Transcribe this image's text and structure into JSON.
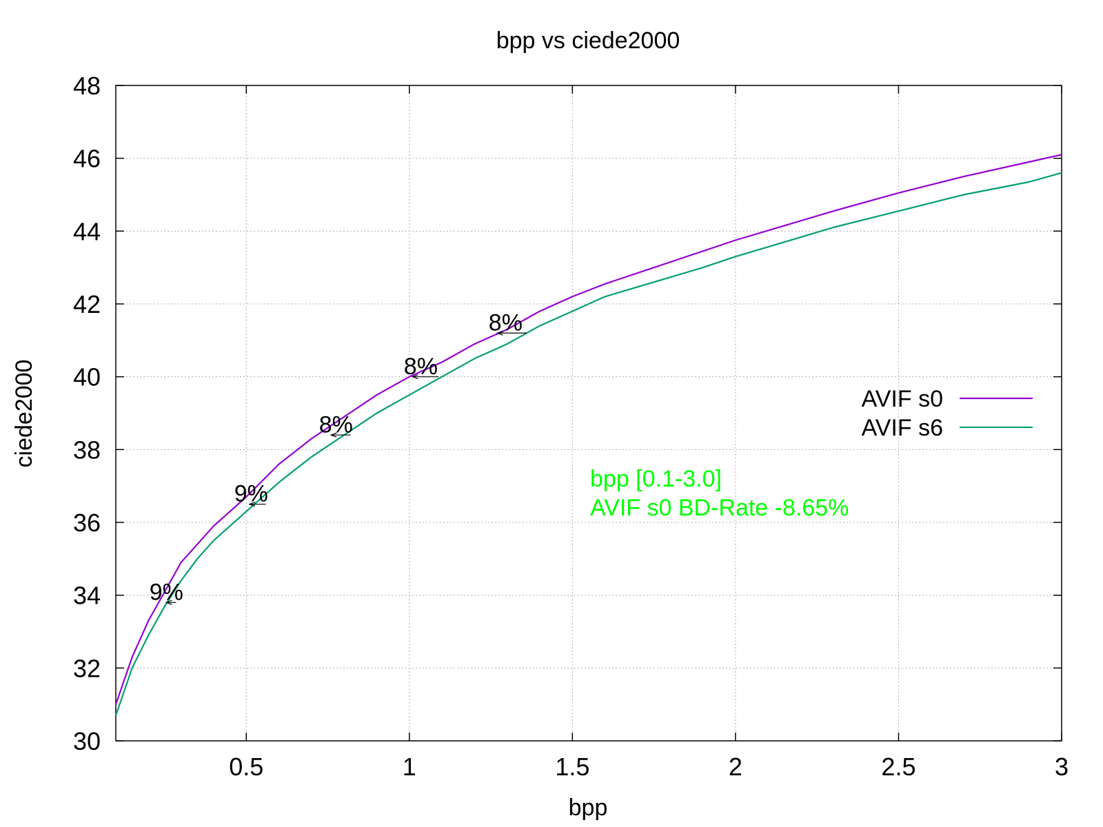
{
  "chart_data": {
    "type": "line",
    "title": "bpp vs ciede2000",
    "xlabel": "bpp",
    "ylabel": "ciede2000",
    "xlim": [
      0.1,
      3.0
    ],
    "ylim": [
      30,
      48
    ],
    "xticks": [
      0.5,
      1,
      1.5,
      2,
      2.5,
      3
    ],
    "xtick_labels": [
      "0.5",
      "1",
      "1.5",
      "2",
      "2.5",
      "3"
    ],
    "yticks": [
      30,
      32,
      34,
      36,
      38,
      40,
      42,
      44,
      46,
      48
    ],
    "ytick_labels": [
      "30",
      "32",
      "34",
      "36",
      "38",
      "40",
      "42",
      "44",
      "46",
      "48"
    ],
    "grid": true,
    "legend_position": "right",
    "series": [
      {
        "name": "AVIF s0",
        "color": "#9400d3",
        "x": [
          0.1,
          0.15,
          0.2,
          0.25,
          0.3,
          0.35,
          0.4,
          0.5,
          0.6,
          0.7,
          0.8,
          0.9,
          1.0,
          1.1,
          1.2,
          1.3,
          1.4,
          1.5,
          1.6,
          1.75,
          1.9,
          2.0,
          2.15,
          2.3,
          2.5,
          2.7,
          2.9,
          3.0
        ],
        "y": [
          31.0,
          32.3,
          33.3,
          34.1,
          34.9,
          35.4,
          35.9,
          36.7,
          37.6,
          38.3,
          38.9,
          39.5,
          40.0,
          40.4,
          40.9,
          41.3,
          41.8,
          42.2,
          42.55,
          43.0,
          43.45,
          43.75,
          44.15,
          44.55,
          45.05,
          45.5,
          45.9,
          46.1
        ]
      },
      {
        "name": "AVIF s6",
        "color": "#009e73",
        "x": [
          0.1,
          0.15,
          0.2,
          0.25,
          0.3,
          0.35,
          0.4,
          0.5,
          0.6,
          0.7,
          0.8,
          0.9,
          1.0,
          1.1,
          1.2,
          1.3,
          1.4,
          1.5,
          1.6,
          1.75,
          1.9,
          2.0,
          2.15,
          2.3,
          2.5,
          2.7,
          2.9,
          3.0
        ],
        "y": [
          30.7,
          32.0,
          32.9,
          33.7,
          34.4,
          35.0,
          35.5,
          36.3,
          37.1,
          37.8,
          38.4,
          39.0,
          39.5,
          40.0,
          40.5,
          40.9,
          41.4,
          41.8,
          42.2,
          42.6,
          43.0,
          43.3,
          43.7,
          44.1,
          44.55,
          45.0,
          45.35,
          45.6
        ]
      }
    ],
    "annotations": [
      {
        "text": "9%",
        "x": 0.255,
        "y": 34.1,
        "arrow_from_x": 0.285,
        "arrow_to_x": 0.255,
        "arrow_y": 33.8
      },
      {
        "text": "9%",
        "x": 0.515,
        "y": 36.8,
        "arrow_from_x": 0.56,
        "arrow_to_x": 0.51,
        "arrow_y": 36.5
      },
      {
        "text": "8%",
        "x": 0.775,
        "y": 38.7,
        "arrow_from_x": 0.82,
        "arrow_to_x": 0.76,
        "arrow_y": 38.4
      },
      {
        "text": "8%",
        "x": 1.035,
        "y": 40.3,
        "arrow_from_x": 1.09,
        "arrow_to_x": 1.01,
        "arrow_y": 40.0
      },
      {
        "text": "8%",
        "x": 1.295,
        "y": 41.5,
        "arrow_from_x": 1.36,
        "arrow_to_x": 1.27,
        "arrow_y": 41.2
      }
    ],
    "notes": {
      "color": "#00ff00",
      "lines": [
        "bpp [0.1-3.0]",
        "AVIF s0 BD-Rate -8.65%"
      ]
    }
  }
}
